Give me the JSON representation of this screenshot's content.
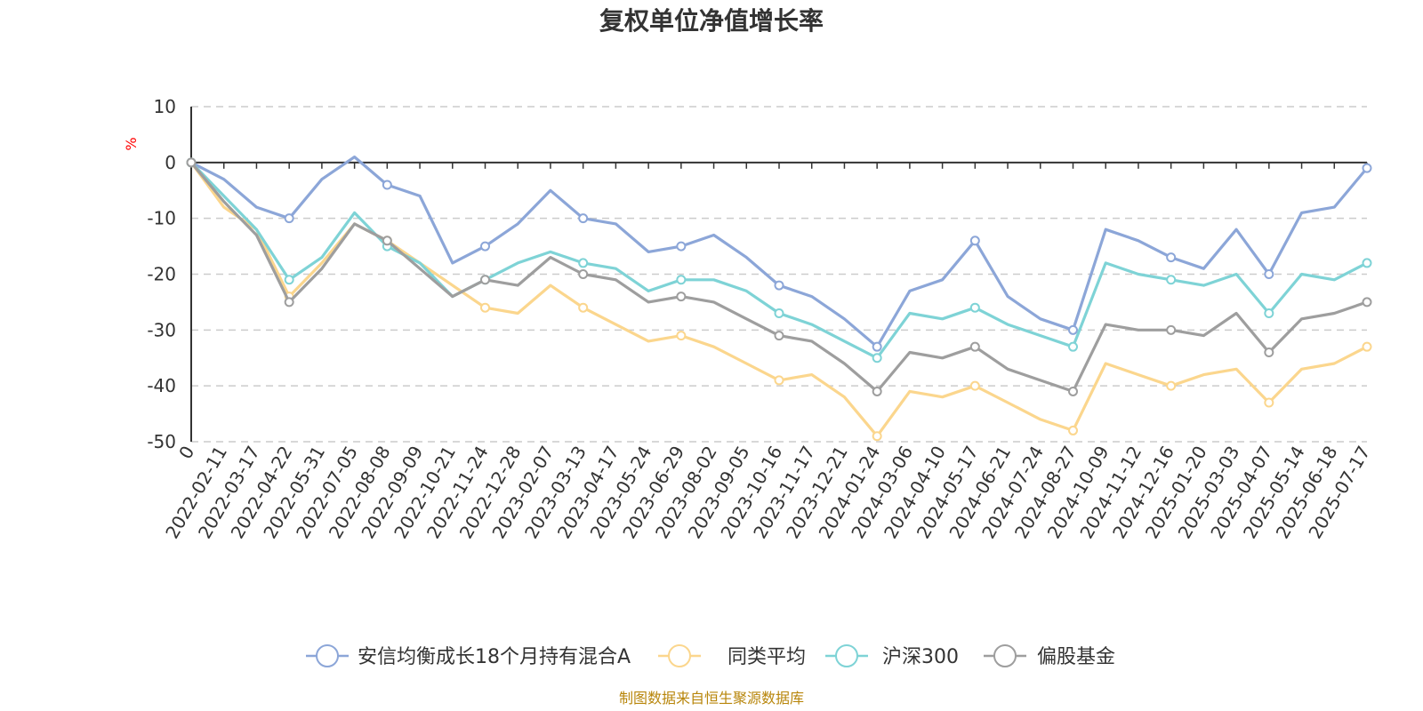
{
  "chart_data": {
    "type": "line",
    "title": "复权单位净值增长率",
    "ylabel": "%",
    "ylim": [
      -50,
      10
    ],
    "y_ticks": [
      10,
      0,
      -10,
      -20,
      -30,
      -40,
      -50
    ],
    "x_ticks": [
      "0",
      "2022-02-11",
      "2022-03-17",
      "2022-04-22",
      "2022-05-31",
      "2022-07-05",
      "2022-08-08",
      "2022-09-09",
      "2022-10-21",
      "2022-11-24",
      "2022-12-28",
      "2023-02-07",
      "2023-03-13",
      "2023-04-17",
      "2023-05-24",
      "2023-06-29",
      "2023-08-02",
      "2023-09-05",
      "2023-10-16",
      "2023-11-17",
      "2023-12-21",
      "2024-01-24",
      "2024-03-06",
      "2024-04-10",
      "2024-05-17",
      "2024-06-21",
      "2024-07-24",
      "2024-08-27",
      "2024-10-09",
      "2024-11-12",
      "2024-12-16",
      "2025-01-20",
      "2025-03-03",
      "2025-04-07",
      "2025-05-14",
      "2025-06-18",
      "2025-07-17"
    ],
    "grid": true,
    "legend_position": "bottom",
    "series": [
      {
        "name": "安信均衡成长18个月持有混合A",
        "color": "#8CA6D8",
        "values": [
          0,
          -3,
          -8,
          -10,
          -3,
          1,
          -4,
          -6,
          -18,
          -15,
          -11,
          -5,
          -10,
          -11,
          -16,
          -15,
          -13,
          -17,
          -22,
          -24,
          -28,
          -33,
          -23,
          -21,
          -14,
          -24,
          -28,
          -30,
          -12,
          -14,
          -17,
          -19,
          -12,
          -20,
          -9,
          -8,
          -1
        ]
      },
      {
        "name": "同类平均",
        "color": "#FBD68D",
        "values": [
          0,
          -8,
          -12,
          -24,
          -18,
          -11,
          -14,
          -18,
          -22,
          -26,
          -27,
          -22,
          -26,
          -29,
          -32,
          -31,
          -33,
          -36,
          -39,
          -38,
          -42,
          -49,
          -41,
          -42,
          -40,
          -43,
          -46,
          -48,
          -36,
          -38,
          -40,
          -38,
          -37,
          -43,
          -37,
          -36,
          -33
        ]
      },
      {
        "name": "沪深300",
        "color": "#7ED3D6",
        "values": [
          0,
          -6,
          -12,
          -21,
          -17,
          -9,
          -15,
          -18,
          -24,
          -21,
          -18,
          -16,
          -18,
          -19,
          -23,
          -21,
          -21,
          -23,
          -27,
          -29,
          -32,
          -35,
          -27,
          -28,
          -26,
          -29,
          -31,
          -33,
          -18,
          -20,
          -21,
          -22,
          -20,
          -27,
          -20,
          -21,
          -18
        ]
      },
      {
        "name": "偏股基金",
        "color": "#9E9E9E",
        "values": [
          0,
          -7,
          -13,
          -25,
          -19,
          -11,
          -14,
          -19,
          -24,
          -21,
          -22,
          -17,
          -20,
          -21,
          -25,
          -24,
          -25,
          -28,
          -31,
          -32,
          -36,
          -41,
          -34,
          -35,
          -33,
          -37,
          -39,
          -41,
          -29,
          -30,
          -30,
          -31,
          -27,
          -34,
          -28,
          -27,
          -25
        ]
      }
    ]
  },
  "source_text": "制图数据来自恒生聚源数据库"
}
